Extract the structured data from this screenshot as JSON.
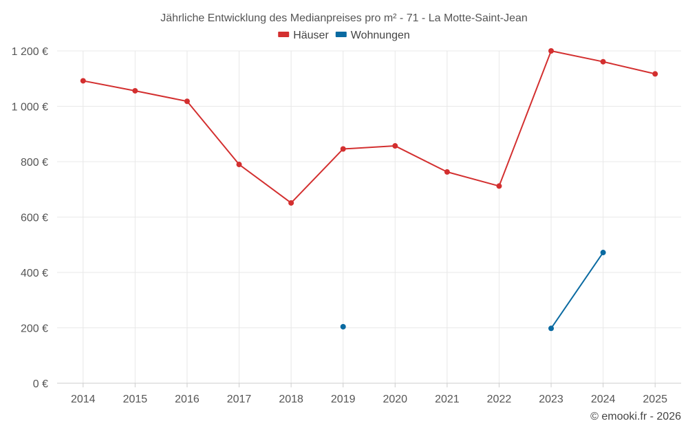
{
  "chart_data": {
    "type": "line",
    "title": "Jährliche Entwicklung des Medianpreises pro m² - 71 - La Motte-Saint-Jean",
    "categories": [
      "2014",
      "2015",
      "2016",
      "2017",
      "2018",
      "2019",
      "2020",
      "2021",
      "2022",
      "2023",
      "2024",
      "2025"
    ],
    "ylim": [
      0,
      1200
    ],
    "yticks": [
      0,
      200,
      400,
      600,
      800,
      1000,
      1200
    ],
    "ytick_labels": [
      "0 €",
      "200 €",
      "400 €",
      "600 €",
      "800 €",
      "1 000 €",
      "1 200 €"
    ],
    "grid": true,
    "legend_position": "top-center",
    "series": [
      {
        "name": "Häuser",
        "color": "#d32f2f",
        "values": [
          1092,
          1056,
          1018,
          790,
          651,
          846,
          857,
          763,
          712,
          1200,
          1161,
          1117
        ]
      },
      {
        "name": "Wohnungen",
        "color": "#0a6aa1",
        "values": [
          null,
          null,
          null,
          null,
          null,
          204,
          null,
          null,
          null,
          198,
          472,
          null
        ]
      }
    ]
  },
  "credit": "© emooki.fr - 2026"
}
